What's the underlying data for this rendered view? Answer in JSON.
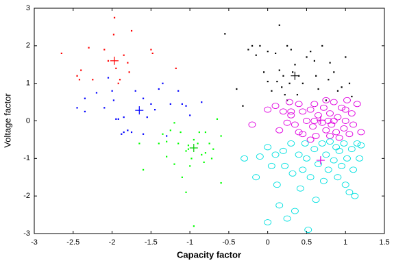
{
  "chart_data": {
    "type": "scatter",
    "xlabel": "Capacity factor",
    "ylabel": "Voltage factor",
    "xlim": [
      -3,
      1.5
    ],
    "ylim": [
      -3,
      3
    ],
    "xticks": [
      -3,
      -2.5,
      -2,
      -1.5,
      -1,
      -0.5,
      0,
      0.5,
      1,
      1.5
    ],
    "yticks": [
      -3,
      -2,
      -1,
      0,
      1,
      2,
      3
    ],
    "series": [
      {
        "color": "#ff0000",
        "marker": "dot",
        "x": [
          -2.65,
          -2.45,
          -2.4,
          -2.42,
          -2.3,
          -2.25,
          -1.97,
          -1.98,
          -2.05,
          -1.95,
          -1.9,
          -1.92,
          -1.85,
          -1.8,
          -1.78,
          -1.75,
          -1.5,
          -1.48,
          -1.18,
          -2.1
        ],
        "values": [
          1.8,
          1.2,
          1.35,
          1.1,
          1.95,
          1.1,
          2.75,
          2.3,
          1.6,
          1.4,
          1.1,
          1.0,
          1.75,
          1.55,
          1.3,
          2.4,
          1.9,
          1.8,
          1.4,
          1.9
        ]
      },
      {
        "color": "#0000ff",
        "marker": "dot",
        "x": [
          -2.45,
          -2.35,
          -2.35,
          -2.2,
          -2.1,
          -2.05,
          -2.0,
          -1.98,
          -1.95,
          -1.92,
          -1.88,
          -1.85,
          -1.8,
          -1.75,
          -1.85,
          -1.6,
          -1.6,
          -1.55,
          -1.5,
          -1.45,
          -1.4,
          -1.35,
          -1.3,
          -1.25,
          -1.15,
          -1.1,
          -1.05,
          -1.0,
          -0.85,
          -1.7
        ],
        "values": [
          0.35,
          0.25,
          0.6,
          0.75,
          0.35,
          1.15,
          0.8,
          0.55,
          0.05,
          0.05,
          -0.35,
          -0.3,
          -0.25,
          -0.3,
          0.1,
          -0.35,
          0.6,
          0.1,
          0.45,
          0.3,
          0.85,
          1.0,
          -0.4,
          0.45,
          0.8,
          0.45,
          0.4,
          0.15,
          0.5,
          0.8
        ]
      },
      {
        "color": "#00ff00",
        "marker": "dot",
        "x": [
          -1.65,
          -1.6,
          -1.4,
          -1.35,
          -1.3,
          -1.3,
          -1.25,
          -1.2,
          -1.2,
          -1.15,
          -1.12,
          -1.1,
          -1.05,
          -1.02,
          -1.0,
          -0.98,
          -0.95,
          -0.9,
          -0.88,
          -0.85,
          -0.82,
          -0.8,
          -0.8,
          -0.75,
          -0.72,
          -0.65,
          -0.6,
          -0.6,
          -0.95,
          -1.02,
          -0.7,
          -1.05
        ],
        "values": [
          -0.6,
          -1.3,
          -0.6,
          -0.35,
          -0.55,
          -0.95,
          -0.25,
          -0.05,
          -1.15,
          -0.6,
          -0.3,
          -1.5,
          -0.8,
          -0.65,
          -1.2,
          -1.0,
          -0.5,
          -0.6,
          -0.3,
          -0.9,
          -1.1,
          -0.3,
          -0.85,
          -0.6,
          -1.0,
          0.05,
          -0.4,
          -1.65,
          -2.8,
          -0.75,
          -0.75,
          -1.9
        ]
      },
      {
        "color": "#000000",
        "marker": "dot",
        "x": [
          -0.55,
          -0.4,
          -0.32,
          -0.25,
          -0.2,
          -0.15,
          -0.1,
          0.0,
          -0.05,
          0.0,
          0.05,
          0.1,
          0.15,
          0.12,
          0.15,
          0.18,
          0.2,
          0.22,
          0.25,
          0.28,
          0.3,
          0.32,
          0.35,
          0.38,
          0.4,
          0.45,
          0.5,
          0.55,
          0.6,
          0.62,
          0.65,
          0.7,
          0.75,
          0.8,
          0.85,
          0.9,
          0.95,
          1.0,
          1.05,
          1.08,
          0.78,
          0.25
        ],
        "values": [
          2.32,
          0.85,
          0.4,
          1.9,
          2.0,
          1.75,
          2.0,
          1.85,
          1.3,
          1.05,
          0.8,
          1.8,
          2.55,
          1.05,
          1.35,
          0.9,
          1.2,
          0.7,
          2.0,
          1.0,
          1.9,
          1.3,
          1.5,
          0.7,
          1.2,
          1.0,
          1.7,
          1.85,
          1.6,
          1.2,
          0.85,
          2.0,
          0.55,
          1.55,
          1.3,
          0.8,
          0.9,
          1.7,
          1.0,
          0.65,
          1.1,
          0.55
        ]
      },
      {
        "color": "#e000e0",
        "marker": "circle",
        "x": [
          -0.2,
          0.0,
          0.1,
          0.15,
          0.2,
          0.28,
          0.3,
          0.35,
          0.4,
          0.45,
          0.45,
          0.5,
          0.55,
          0.58,
          0.6,
          0.62,
          0.65,
          0.7,
          0.72,
          0.75,
          0.78,
          0.8,
          0.8,
          0.82,
          0.85,
          0.88,
          0.9,
          0.92,
          0.95,
          0.98,
          1.0,
          1.02,
          1.05,
          1.08,
          1.1,
          1.15,
          1.2,
          0.3,
          0.55,
          0.85,
          0.75,
          0.6,
          0.4,
          1.0,
          0.25
        ],
        "values": [
          -0.1,
          0.3,
          0.4,
          -0.25,
          0.25,
          0.5,
          0.15,
          -0.1,
          0.45,
          0.25,
          -0.35,
          0.0,
          0.3,
          -0.15,
          0.45,
          -0.4,
          0.15,
          -0.05,
          0.35,
          -0.25,
          0.0,
          -0.4,
          0.2,
          -0.1,
          0.5,
          -0.3,
          0.1,
          -0.45,
          0.35,
          -0.2,
          0.0,
          0.55,
          -0.35,
          0.2,
          -0.1,
          0.45,
          -0.3,
          0.25,
          -0.5,
          0.0,
          0.55,
          0.0,
          -0.3,
          0.3,
          -0.05
        ]
      },
      {
        "color": "#00e0e0",
        "marker": "circle",
        "x": [
          -0.3,
          -0.15,
          -0.1,
          0.0,
          0.0,
          0.05,
          0.1,
          0.12,
          0.15,
          0.2,
          0.22,
          0.25,
          0.3,
          0.32,
          0.35,
          0.4,
          0.42,
          0.45,
          0.48,
          0.5,
          0.52,
          0.55,
          0.6,
          0.62,
          0.65,
          0.7,
          0.72,
          0.75,
          0.78,
          0.8,
          0.85,
          0.88,
          0.9,
          0.92,
          0.95,
          0.98,
          1.0,
          1.02,
          1.05,
          1.08,
          1.1,
          1.12,
          1.15,
          1.18,
          1.2
        ],
        "values": [
          -1.0,
          -1.5,
          -0.95,
          -0.7,
          -2.7,
          -1.2,
          -0.9,
          -1.7,
          -2.25,
          -0.8,
          -1.2,
          -2.6,
          -0.6,
          -1.4,
          -2.4,
          -0.9,
          -1.8,
          -1.3,
          -0.6,
          -1.0,
          -2.9,
          -1.5,
          -0.75,
          -2.1,
          -1.15,
          -0.6,
          -1.6,
          -0.9,
          -1.3,
          -0.55,
          -1.05,
          -0.7,
          -1.5,
          -0.8,
          -1.2,
          -0.6,
          -1.7,
          -1.0,
          -1.9,
          -0.75,
          -1.3,
          -2.0,
          -0.6,
          -1.0,
          -0.65
        ]
      },
      {
        "color": "#ff0000",
        "marker": "plus",
        "x": [
          -1.97
        ],
        "values": [
          1.6
        ]
      },
      {
        "color": "#0000ff",
        "marker": "plus",
        "x": [
          -1.65
        ],
        "values": [
          0.28
        ]
      },
      {
        "color": "#00cc00",
        "marker": "plus",
        "x": [
          -0.95
        ],
        "values": [
          -0.72
        ]
      },
      {
        "color": "#000000",
        "marker": "plus",
        "x": [
          0.35
        ],
        "values": [
          1.2
        ]
      },
      {
        "color": "#e000e0",
        "marker": "plus",
        "x": [
          0.68,
          0.68
        ],
        "values": [
          0.02,
          -1.05
        ]
      }
    ]
  }
}
